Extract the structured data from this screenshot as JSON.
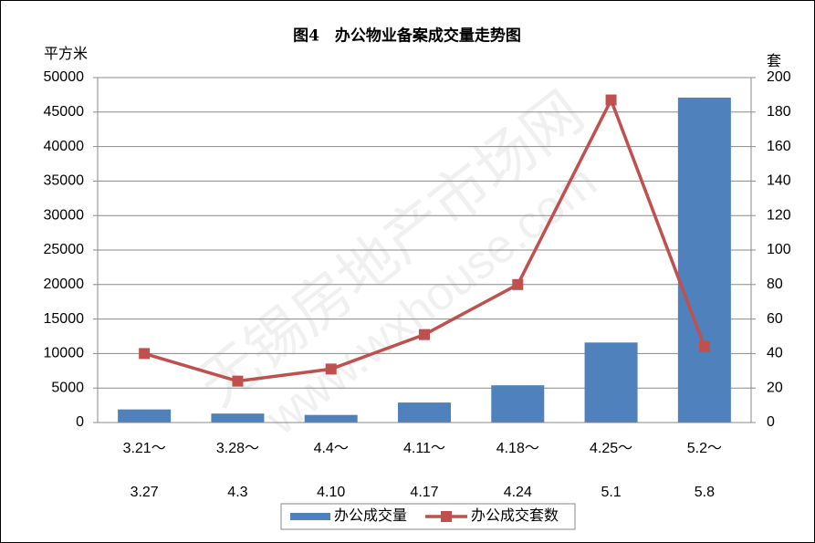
{
  "chart_data": {
    "type": "bar-line",
    "title": "图4　办公物业备案成交量走势图",
    "ylabel": "平方米",
    "y2label": "套",
    "watermark": [
      "无锡房地产市场网",
      "www.wxhouse.com"
    ],
    "categories": [
      [
        "3.21～",
        "3.27"
      ],
      [
        "3.28～",
        "4.3"
      ],
      [
        "4.4～",
        "4.10"
      ],
      [
        "4.11～",
        "4.17"
      ],
      [
        "4.18～",
        "4.24"
      ],
      [
        "4.25～",
        "5.1"
      ],
      [
        "5.2～",
        "5.8"
      ]
    ],
    "series": [
      {
        "name": "办公成交量",
        "color": "#4f81bd",
        "kind": "bar",
        "values": [
          1900,
          1300,
          1100,
          2900,
          5400,
          11600,
          47100
        ]
      },
      {
        "name": "办公成交套数",
        "color": "#c0504d",
        "kind": "line",
        "axis": "y2",
        "values": [
          40,
          24,
          31,
          51,
          80,
          187,
          44
        ]
      }
    ],
    "ylim": [
      0,
      50000
    ],
    "yticks": [
      0,
      5000,
      10000,
      15000,
      20000,
      25000,
      30000,
      35000,
      40000,
      45000,
      50000
    ],
    "y2lim": [
      0,
      200
    ],
    "y2ticks": [
      0,
      20,
      40,
      60,
      80,
      100,
      120,
      140,
      160,
      180,
      200
    ],
    "grid": true,
    "legend": "bottom"
  }
}
